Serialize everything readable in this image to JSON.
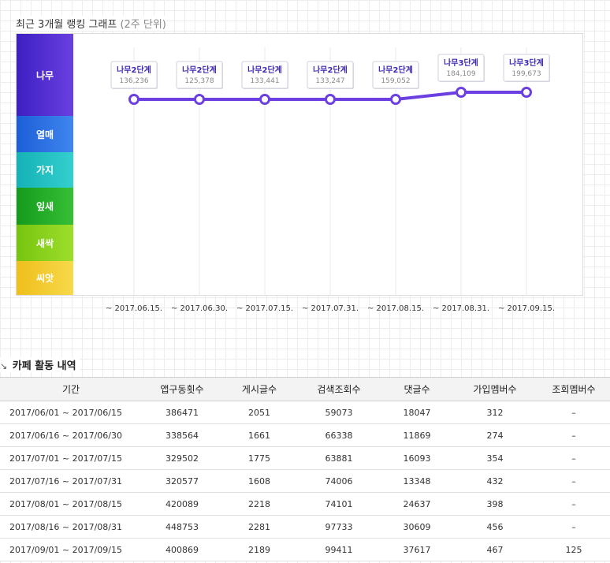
{
  "title": {
    "main": "최근 3개월 랭킹 그래프",
    "sub": "(2주 단위)"
  },
  "levels": [
    "나무",
    "열매",
    "가지",
    "잎새",
    "새싹",
    "씨앗"
  ],
  "colors": {
    "line": "#6b3fe0",
    "rank_text": "#3e2bb5"
  },
  "chart_data": {
    "type": "line",
    "categories": [
      "~ 2017.06.15.",
      "~ 2017.06.30.",
      "~ 2017.07.15.",
      "~ 2017.07.31.",
      "~ 2017.08.15.",
      "~ 2017.08.31.",
      "~ 2017.09.15."
    ],
    "ranks": [
      "나무2단계",
      "나무2단계",
      "나무2단계",
      "나무2단계",
      "나무2단계",
      "나무3단계",
      "나무3단계"
    ],
    "values": [
      "136,236",
      "125,378",
      "133,441",
      "133,247",
      "159,052",
      "184,109",
      "199,673"
    ],
    "level_steps": [
      2,
      2,
      2,
      2,
      2,
      3,
      3
    ],
    "y_categories": [
      "나무",
      "열매",
      "가지",
      "잎새",
      "새싹",
      "씨앗"
    ],
    "grid": true
  },
  "activity": {
    "title": "카페 활동 내역",
    "columns": [
      "기간",
      "앱구동횟수",
      "게시글수",
      "검색조회수",
      "댓글수",
      "가입멤버수",
      "조회멤버수"
    ],
    "rows": [
      [
        "2017/06/01 ~ 2017/06/15",
        "386471",
        "2051",
        "59073",
        "18047",
        "312",
        "–"
      ],
      [
        "2017/06/16 ~ 2017/06/30",
        "338564",
        "1661",
        "66338",
        "11869",
        "274",
        "–"
      ],
      [
        "2017/07/01 ~ 2017/07/15",
        "329502",
        "1775",
        "63881",
        "16093",
        "354",
        "–"
      ],
      [
        "2017/07/16 ~ 2017/07/31",
        "320577",
        "1608",
        "74006",
        "13348",
        "432",
        "–"
      ],
      [
        "2017/08/01 ~ 2017/08/15",
        "420089",
        "2218",
        "74101",
        "24637",
        "398",
        "–"
      ],
      [
        "2017/08/16 ~ 2017/08/31",
        "448753",
        "2281",
        "97733",
        "30609",
        "456",
        "–"
      ],
      [
        "2017/09/01 ~ 2017/09/15",
        "400869",
        "2189",
        "99411",
        "37617",
        "467",
        "125"
      ]
    ]
  }
}
